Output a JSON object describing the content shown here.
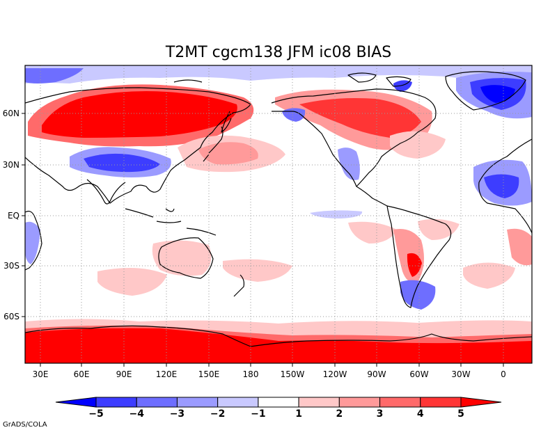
{
  "title": "T2MT cgcm138 JFM ic08 BIAS",
  "credit": "GrADS/COLA",
  "x_ticks": [
    "30E",
    "60E",
    "90E",
    "120E",
    "150E",
    "180",
    "150W",
    "120W",
    "90W",
    "60W",
    "30W",
    "0"
  ],
  "y_ticks": [
    "60N",
    "30N",
    "EQ",
    "30S",
    "60S"
  ],
  "colorbar": {
    "labels": [
      "-5",
      "-4",
      "-3",
      "-2",
      "-1",
      "1",
      "2",
      "3",
      "4",
      "5"
    ],
    "colors": [
      "#0000ff",
      "#3d3dff",
      "#6e6eff",
      "#9b9bff",
      "#c9c9ff",
      "#ffffff",
      "#ffc8c8",
      "#ff9a9a",
      "#ff6a6a",
      "#ff3535",
      "#ff0000"
    ]
  },
  "map_data": {
    "type": "filled-contour map",
    "variable": "2m air temperature bias",
    "season": "JFM",
    "longitude_range": [
      "15E",
      "15E (wrapped, Pacific-centered)"
    ],
    "latitude_range": [
      "75S",
      "90N"
    ],
    "contour_levels": [
      -5,
      -4,
      -3,
      -2,
      -1,
      1,
      2,
      3,
      4,
      5
    ]
  }
}
